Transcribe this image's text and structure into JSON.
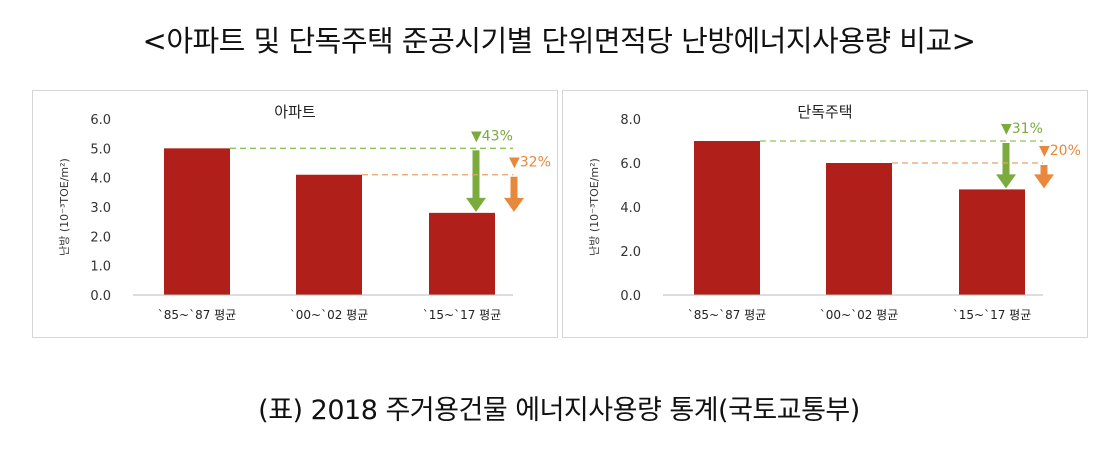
{
  "title": "<아파트 및 단독주택 준공시기별 단위면적당 난방에너지사용량 비교>",
  "caption": "(표) 2018 주거용건물 에너지사용량 통계(국토교통부)",
  "colors": {
    "bar": "#b01f1a",
    "green": "#7aab3c",
    "orange": "#e8883c",
    "gridline_green": "#8fc35a",
    "gridline_orange": "#e8a36a"
  },
  "chart_data": [
    {
      "type": "bar",
      "title": "아파트",
      "ylabel": "난방 (10⁻³TOE/m²)",
      "ylim": [
        0,
        6
      ],
      "yticks": [
        "0.0",
        "1.0",
        "2.0",
        "3.0",
        "4.0",
        "5.0",
        "6.0"
      ],
      "categories": [
        "`85~`87 평균",
        "`00~`02 평균",
        "`15~`17 평균"
      ],
      "values": [
        5.0,
        4.1,
        2.8
      ],
      "annotations": [
        {
          "label": "▼43%",
          "from_index": 0,
          "to_index": 2,
          "color": "green"
        },
        {
          "label": "▼32%",
          "from_index": 1,
          "to_index": 2,
          "color": "orange"
        }
      ]
    },
    {
      "type": "bar",
      "title": "단독주택",
      "ylabel": "난방 (10⁻³TOE/m²)",
      "ylim": [
        0,
        8
      ],
      "yticks": [
        "0.0",
        "2.0",
        "4.0",
        "6.0",
        "8.0"
      ],
      "categories": [
        "`85~`87 평균",
        "`00~`02 평균",
        "`15~`17 평균"
      ],
      "values": [
        7.0,
        6.0,
        4.8
      ],
      "annotations": [
        {
          "label": "▼31%",
          "from_index": 0,
          "to_index": 2,
          "color": "green"
        },
        {
          "label": "▼20%",
          "from_index": 1,
          "to_index": 2,
          "color": "orange"
        }
      ]
    }
  ]
}
